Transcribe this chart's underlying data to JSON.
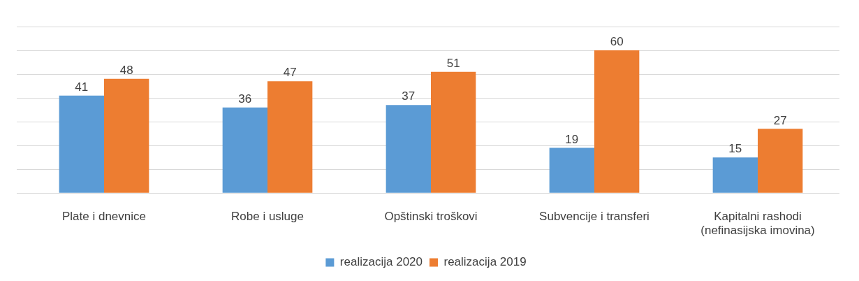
{
  "chart_data": {
    "type": "bar",
    "categories": [
      "Plate i dnevnice",
      "Robe i usluge",
      "Opštinski troškovi",
      "Subvencije i transferi",
      "Kapitalni rashodi (nefinasijska imovina)"
    ],
    "series": [
      {
        "name": "realizacija 2020",
        "color": "#5b9bd5",
        "values": [
          41,
          36,
          37,
          19,
          15
        ]
      },
      {
        "name": "realizacija 2019",
        "color": "#ed7d31",
        "values": [
          48,
          47,
          51,
          60,
          27
        ]
      }
    ],
    "ylim": [
      0,
      70
    ],
    "yticks": [
      {
        "value": 0,
        "label": null
      },
      {
        "value": 10,
        "label": null
      },
      {
        "value": 20,
        "label": null
      },
      {
        "value": 30,
        "label": null
      },
      {
        "value": 40,
        "label": null
      },
      {
        "value": 50,
        "label": null
      },
      {
        "value": 60,
        "label": null
      },
      {
        "value": 70,
        "label": null
      }
    ],
    "grid": "y",
    "legend": "bottom",
    "data_labels": true
  }
}
